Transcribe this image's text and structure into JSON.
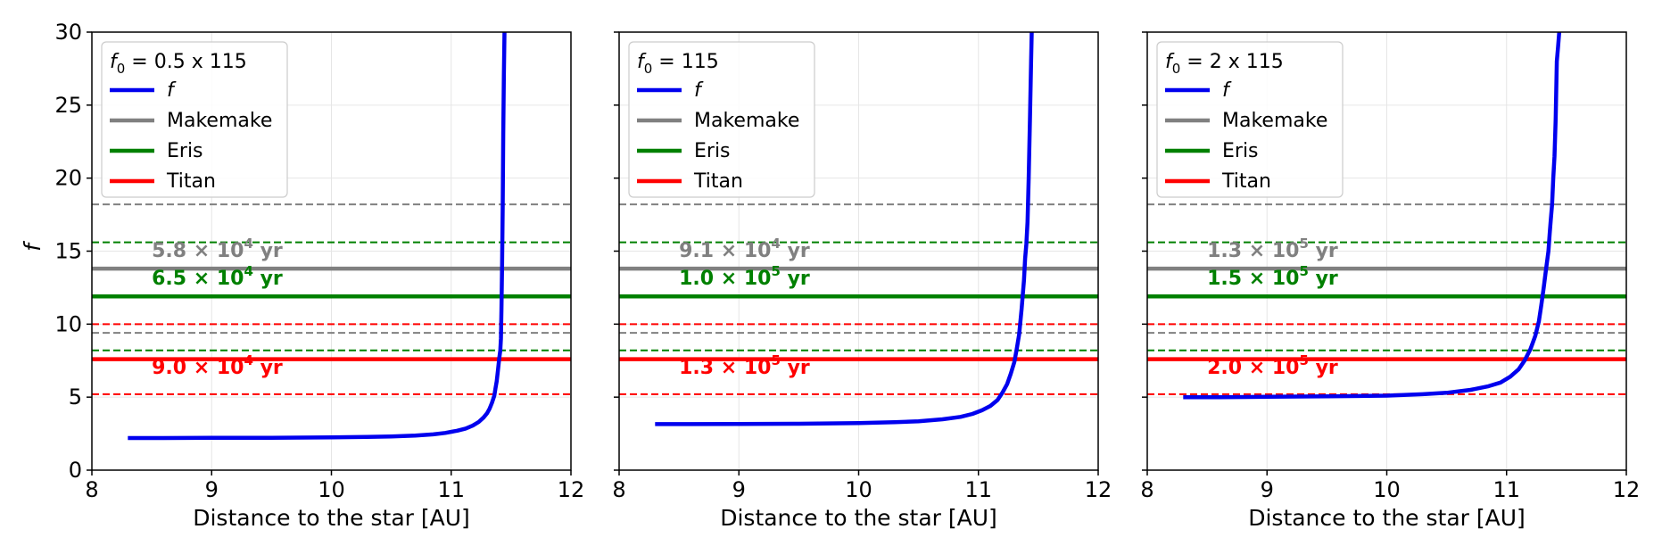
{
  "chart_data": [
    {
      "type": "line",
      "legend_title": "f0 = 0.5 x 115",
      "legend_title_main": "f",
      "legend_title_sub": "0",
      "legend_title_rest": " = 0.5 x 115",
      "ylabel": "f",
      "xlabel": "Distance to the star [AU]",
      "xlim": [
        8,
        12
      ],
      "ylim": [
        0,
        30
      ],
      "xticks": [
        "8",
        "9",
        "10",
        "11",
        "12"
      ],
      "yticks": [
        "0",
        "5",
        "10",
        "15",
        "20",
        "25",
        "30"
      ],
      "show_ytick_labels": true,
      "legend": [
        {
          "label": "f",
          "italic": true,
          "color": "#0000ee"
        },
        {
          "label": "Makemake",
          "italic": false,
          "color": "#808080"
        },
        {
          "label": "Eris",
          "italic": false,
          "color": "#008000"
        },
        {
          "label": "Titan",
          "italic": false,
          "color": "#ff0000"
        }
      ],
      "reference_lines": [
        {
          "body": "Makemake",
          "style": "dashed",
          "y": 18.2,
          "color": "#808080"
        },
        {
          "body": "Eris",
          "style": "dashed",
          "y": 15.6,
          "color": "#008000"
        },
        {
          "body": "Makemake",
          "style": "solid",
          "y": 13.8,
          "color": "#808080"
        },
        {
          "body": "Eris",
          "style": "solid",
          "y": 11.9,
          "color": "#008000"
        },
        {
          "body": "Titan",
          "style": "dashed",
          "y": 10.0,
          "color": "#ff0000"
        },
        {
          "body": "Makemake",
          "style": "dashed",
          "y": 9.4,
          "color": "#808080"
        },
        {
          "body": "Eris",
          "style": "dashed",
          "y": 8.2,
          "color": "#008000"
        },
        {
          "body": "Titan",
          "style": "solid",
          "y": 7.6,
          "color": "#ff0000"
        },
        {
          "body": "Titan",
          "style": "dashed",
          "y": 5.2,
          "color": "#ff0000"
        }
      ],
      "annotations": [
        {
          "mantissa": "5.8",
          "exponent": "4",
          "unit": "yr",
          "x": 8.5,
          "y": 14.6,
          "color": "#808080"
        },
        {
          "mantissa": "6.5",
          "exponent": "4",
          "unit": "yr",
          "x": 8.5,
          "y": 12.7,
          "color": "#008000"
        },
        {
          "mantissa": "9.0",
          "exponent": "4",
          "unit": "yr",
          "x": 8.5,
          "y": 6.6,
          "color": "#ff0000"
        }
      ],
      "series": [
        {
          "name": "f",
          "color": "#0000ee",
          "x": [
            8.3,
            8.6,
            9.0,
            9.5,
            10.0,
            10.3,
            10.5,
            10.7,
            10.85,
            10.95,
            11.05,
            11.12,
            11.18,
            11.23,
            11.27,
            11.3,
            11.32,
            11.34,
            11.36,
            11.37,
            11.38,
            11.39,
            11.4,
            11.41,
            11.415,
            11.42,
            11.425,
            11.43,
            11.435,
            11.44,
            11.445
          ],
          "y": [
            2.2,
            2.2,
            2.21,
            2.22,
            2.24,
            2.27,
            2.31,
            2.37,
            2.45,
            2.55,
            2.7,
            2.85,
            3.05,
            3.3,
            3.6,
            3.9,
            4.2,
            4.6,
            5.1,
            5.6,
            6.1,
            6.8,
            7.6,
            8.2,
            9.0,
            11.0,
            14.0,
            18.0,
            23.0,
            27.0,
            30.0
          ]
        }
      ]
    },
    {
      "type": "line",
      "legend_title": "f0 = 115",
      "legend_title_main": "f",
      "legend_title_sub": "0",
      "legend_title_rest": " = 115",
      "ylabel": "",
      "xlabel": "Distance to the star [AU]",
      "xlim": [
        8,
        12
      ],
      "ylim": [
        0,
        30
      ],
      "xticks": [
        "8",
        "9",
        "10",
        "11",
        "12"
      ],
      "yticks": [
        "0",
        "5",
        "10",
        "15",
        "20",
        "25",
        "30"
      ],
      "show_ytick_labels": false,
      "legend": [
        {
          "label": "f",
          "italic": true,
          "color": "#0000ee"
        },
        {
          "label": "Makemake",
          "italic": false,
          "color": "#808080"
        },
        {
          "label": "Eris",
          "italic": false,
          "color": "#008000"
        },
        {
          "label": "Titan",
          "italic": false,
          "color": "#ff0000"
        }
      ],
      "reference_lines": [
        {
          "body": "Makemake",
          "style": "dashed",
          "y": 18.2,
          "color": "#808080"
        },
        {
          "body": "Eris",
          "style": "dashed",
          "y": 15.6,
          "color": "#008000"
        },
        {
          "body": "Makemake",
          "style": "solid",
          "y": 13.8,
          "color": "#808080"
        },
        {
          "body": "Eris",
          "style": "solid",
          "y": 11.9,
          "color": "#008000"
        },
        {
          "body": "Titan",
          "style": "dashed",
          "y": 10.0,
          "color": "#ff0000"
        },
        {
          "body": "Makemake",
          "style": "dashed",
          "y": 9.4,
          "color": "#808080"
        },
        {
          "body": "Eris",
          "style": "dashed",
          "y": 8.2,
          "color": "#008000"
        },
        {
          "body": "Titan",
          "style": "solid",
          "y": 7.6,
          "color": "#ff0000"
        },
        {
          "body": "Titan",
          "style": "dashed",
          "y": 5.2,
          "color": "#ff0000"
        }
      ],
      "annotations": [
        {
          "mantissa": "9.1",
          "exponent": "4",
          "unit": "yr",
          "x": 8.5,
          "y": 14.6,
          "color": "#808080"
        },
        {
          "mantissa": "1.0",
          "exponent": "5",
          "unit": "yr",
          "x": 8.5,
          "y": 12.7,
          "color": "#008000"
        },
        {
          "mantissa": "1.3",
          "exponent": "5",
          "unit": "yr",
          "x": 8.5,
          "y": 6.6,
          "color": "#ff0000"
        }
      ],
      "series": [
        {
          "name": "f",
          "color": "#0000ee",
          "x": [
            8.3,
            8.6,
            9.0,
            9.5,
            10.0,
            10.3,
            10.5,
            10.7,
            10.85,
            10.95,
            11.03,
            11.1,
            11.16,
            11.2,
            11.24,
            11.27,
            11.3,
            11.32,
            11.34,
            11.36,
            11.38,
            11.39,
            11.4,
            11.41,
            11.42,
            11.43,
            11.44,
            11.445
          ],
          "y": [
            3.15,
            3.15,
            3.16,
            3.18,
            3.22,
            3.28,
            3.35,
            3.48,
            3.65,
            3.85,
            4.1,
            4.4,
            4.8,
            5.3,
            5.9,
            6.6,
            7.4,
            8.3,
            9.3,
            11.0,
            13.0,
            14.5,
            15.5,
            17.0,
            20.0,
            24.0,
            28.0,
            30.0
          ]
        }
      ]
    },
    {
      "type": "line",
      "legend_title": "f0 = 2 x 115",
      "legend_title_main": "f",
      "legend_title_sub": "0",
      "legend_title_rest": " = 2 x 115",
      "ylabel": "",
      "xlabel": "Distance to the star [AU]",
      "xlim": [
        8,
        12
      ],
      "ylim": [
        0,
        30
      ],
      "xticks": [
        "8",
        "9",
        "10",
        "11",
        "12"
      ],
      "yticks": [
        "0",
        "5",
        "10",
        "15",
        "20",
        "25",
        "30"
      ],
      "show_ytick_labels": false,
      "legend": [
        {
          "label": "f",
          "italic": true,
          "color": "#0000ee"
        },
        {
          "label": "Makemake",
          "italic": false,
          "color": "#808080"
        },
        {
          "label": "Eris",
          "italic": false,
          "color": "#008000"
        },
        {
          "label": "Titan",
          "italic": false,
          "color": "#ff0000"
        }
      ],
      "reference_lines": [
        {
          "body": "Makemake",
          "style": "dashed",
          "y": 18.2,
          "color": "#808080"
        },
        {
          "body": "Eris",
          "style": "dashed",
          "y": 15.6,
          "color": "#008000"
        },
        {
          "body": "Makemake",
          "style": "solid",
          "y": 13.8,
          "color": "#808080"
        },
        {
          "body": "Eris",
          "style": "solid",
          "y": 11.9,
          "color": "#008000"
        },
        {
          "body": "Titan",
          "style": "dashed",
          "y": 10.0,
          "color": "#ff0000"
        },
        {
          "body": "Makemake",
          "style": "dashed",
          "y": 9.4,
          "color": "#808080"
        },
        {
          "body": "Eris",
          "style": "dashed",
          "y": 8.2,
          "color": "#008000"
        },
        {
          "body": "Titan",
          "style": "solid",
          "y": 7.6,
          "color": "#ff0000"
        },
        {
          "body": "Titan",
          "style": "dashed",
          "y": 5.2,
          "color": "#ff0000"
        }
      ],
      "annotations": [
        {
          "mantissa": "1.3",
          "exponent": "5",
          "unit": "yr",
          "x": 8.5,
          "y": 14.6,
          "color": "#808080"
        },
        {
          "mantissa": "1.5",
          "exponent": "5",
          "unit": "yr",
          "x": 8.5,
          "y": 12.7,
          "color": "#008000"
        },
        {
          "mantissa": "2.0",
          "exponent": "5",
          "unit": "yr",
          "x": 8.5,
          "y": 6.6,
          "color": "#ff0000"
        }
      ],
      "series": [
        {
          "name": "f",
          "color": "#0000ee",
          "x": [
            8.3,
            8.6,
            9.0,
            9.5,
            10.0,
            10.3,
            10.5,
            10.7,
            10.85,
            10.95,
            11.03,
            11.1,
            11.15,
            11.2,
            11.24,
            11.27,
            11.29,
            11.31,
            11.33,
            11.35,
            11.36,
            11.37,
            11.38,
            11.39,
            11.4,
            11.41,
            11.42,
            11.43,
            11.44,
            11.445
          ],
          "y": [
            5.0,
            5.0,
            5.02,
            5.05,
            5.1,
            5.2,
            5.3,
            5.5,
            5.75,
            6.0,
            6.4,
            6.9,
            7.5,
            8.3,
            9.2,
            10.2,
            11.3,
            12.5,
            13.8,
            15.0,
            16.2,
            17.2,
            18.2,
            20.0,
            21.5,
            24.0,
            28.0,
            29.0,
            30.0,
            30.0
          ]
        }
      ]
    }
  ]
}
